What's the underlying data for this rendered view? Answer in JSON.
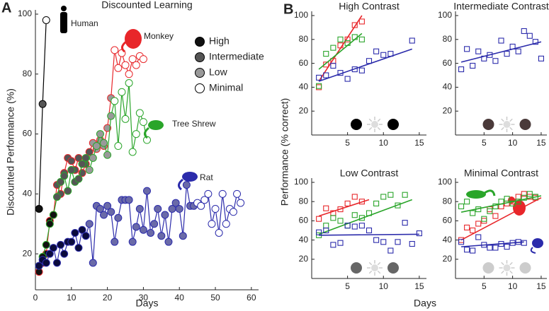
{
  "chart_data": [
    {
      "type": "line",
      "panel_label": "A",
      "title": "Discounted Learning",
      "x_label": "Days",
      "y_label": "Discounted Performance (%)",
      "xlim": [
        0,
        62
      ],
      "xticks": [
        0,
        10,
        20,
        30,
        40,
        50,
        60
      ],
      "ylim": [
        8,
        100
      ],
      "yticks": [
        20,
        40,
        60,
        80,
        100
      ],
      "legend": [
        {
          "name": "High",
          "color": "#111111"
        },
        {
          "name": "Intermediate",
          "color": "#555555"
        },
        {
          "name": "Low",
          "color": "#999999"
        },
        {
          "name": "Minimal",
          "color": "#ffffff"
        }
      ],
      "series": [
        {
          "name": "Human",
          "color": "#000000",
          "x": [
            1,
            2,
            3
          ],
          "values": [
            35,
            70,
            98
          ],
          "marker_colors": [
            "#111111",
            "#555555",
            "#ffffff"
          ]
        },
        {
          "name": "Monkey",
          "color": "#e8262a",
          "x": [
            1,
            2,
            3,
            4,
            5,
            6,
            7,
            8,
            9,
            10,
            11,
            12,
            13,
            14,
            15,
            16,
            17,
            18,
            19,
            20,
            21,
            22,
            23,
            24,
            25,
            26,
            27,
            28,
            29,
            30
          ],
          "values": [
            14,
            17,
            20,
            31,
            33,
            43,
            40,
            47,
            52,
            51,
            48,
            52,
            47,
            50,
            54,
            57,
            55,
            58,
            56,
            62,
            72,
            88,
            82,
            87,
            83,
            80,
            85,
            83,
            86,
            85
          ],
          "marker_colors": [
            "#111111",
            "#111111",
            "#111111",
            "#111111",
            "#111111",
            "#555555",
            "#555555",
            "#555555",
            "#555555",
            "#555555",
            "#555555",
            "#555555",
            "#555555",
            "#555555",
            "#555555",
            "#999999",
            "#999999",
            "#999999",
            "#999999",
            "#999999",
            "#999999",
            "#ffffff",
            "#ffffff",
            "#ffffff",
            "#ffffff",
            "#ffffff",
            "#ffffff",
            "#ffffff",
            "#ffffff",
            "#ffffff"
          ]
        },
        {
          "name": "Tree Shrew",
          "color": "#2aa52a",
          "x": [
            1,
            2,
            3,
            4,
            5,
            6,
            7,
            8,
            9,
            10,
            11,
            12,
            13,
            14,
            15,
            16,
            17,
            18,
            19,
            20,
            21,
            22,
            23,
            24,
            25,
            26,
            27,
            28,
            29,
            30,
            31
          ],
          "values": [
            16,
            19,
            23,
            30,
            33,
            39,
            44,
            46,
            41,
            48,
            44,
            45,
            50,
            52,
            48,
            52,
            56,
            60,
            57,
            53,
            66,
            71,
            56,
            74,
            65,
            77,
            54,
            60,
            67,
            64,
            58
          ],
          "marker_colors": [
            "#111111",
            "#111111",
            "#111111",
            "#111111",
            "#111111",
            "#555555",
            "#555555",
            "#555555",
            "#555555",
            "#555555",
            "#555555",
            "#555555",
            "#555555",
            "#555555",
            "#999999",
            "#999999",
            "#999999",
            "#999999",
            "#999999",
            "#999999",
            "#999999",
            "#ffffff",
            "#ffffff",
            "#ffffff",
            "#ffffff",
            "#ffffff",
            "#ffffff",
            "#ffffff",
            "#ffffff",
            "#ffffff",
            "#ffffff"
          ]
        },
        {
          "name": "Rat",
          "color": "#2b2bab",
          "x": [
            1,
            2,
            3,
            4,
            5,
            6,
            7,
            8,
            9,
            10,
            11,
            12,
            13,
            14,
            15,
            16,
            17,
            18,
            19,
            20,
            21,
            22,
            23,
            24,
            25,
            26,
            27,
            28,
            29,
            30,
            31,
            32,
            33,
            34,
            35,
            36,
            37,
            38,
            39,
            40,
            41,
            42,
            43,
            44,
            45,
            46,
            47,
            48,
            49,
            50,
            51,
            52,
            53,
            54,
            55,
            56,
            57
          ],
          "values": [
            16,
            18,
            17,
            20,
            22,
            17,
            23,
            20,
            24,
            24,
            27,
            22,
            28,
            26,
            30,
            17,
            36,
            35,
            33,
            36,
            34,
            24,
            32,
            38,
            38,
            38,
            24,
            29,
            35,
            28,
            41,
            27,
            30,
            35,
            26,
            33,
            24,
            35,
            37,
            35,
            26,
            43,
            36,
            36,
            37,
            36,
            38,
            40,
            30,
            35,
            27,
            40,
            30,
            35,
            34,
            40,
            37
          ],
          "marker_colors": [
            "#0b0b3b",
            "#0b0b3b",
            "#0b0b3b",
            "#0b0b3b",
            "#0b0b3b",
            "#0b0b3b",
            "#0b0b3b",
            "#0b0b3b",
            "#0b0b3b",
            "#0b0b3b",
            "#0b0b3b",
            "#0b0b3b",
            "#0b0b3b",
            "#0b0b3b",
            "#6a6aa8",
            "#6a6aa8",
            "#6a6aa8",
            "#6a6aa8",
            "#6a6aa8",
            "#6a6aa8",
            "#6a6aa8",
            "#6a6aa8",
            "#6a6aa8",
            "#6a6aa8",
            "#6a6aa8",
            "#6a6aa8",
            "#6a6aa8",
            "#6a6aa8",
            "#6a6aa8",
            "#6a6aa8",
            "#6a6aa8",
            "#6a6aa8",
            "#6a6aa8",
            "#6a6aa8",
            "#6a6aa8",
            "#6a6aa8",
            "#6a6aa8",
            "#6a6aa8",
            "#6a6aa8",
            "#6a6aa8",
            "#6a6aa8",
            "#6a6aa8",
            "#6a6aa8",
            "#6a6aa8",
            "#ffffff",
            "#ffffff",
            "#ffffff",
            "#ffffff",
            "#ffffff",
            "#ffffff",
            "#ffffff",
            "#ffffff",
            "#ffffff",
            "#ffffff",
            "#ffffff",
            "#ffffff",
            "#ffffff"
          ]
        }
      ]
    },
    {
      "type": "scatter",
      "panel_label": "B",
      "title": "High Contrast",
      "stimulus_color": "#000000",
      "xlim": [
        0,
        16
      ],
      "xticks": [
        5,
        10,
        15
      ],
      "ylim": [
        0,
        100
      ],
      "yticks": [
        20,
        40,
        60,
        80,
        100
      ],
      "series": [
        {
          "color": "#e8262a",
          "x": [
            1,
            2,
            3,
            4,
            5,
            6,
            7
          ],
          "values": [
            40,
            59,
            62,
            75,
            80,
            92,
            95
          ],
          "fit_x": [
            1,
            7
          ],
          "fit_values": [
            45,
            100
          ]
        },
        {
          "color": "#2aa52a",
          "x": [
            1,
            2,
            3,
            4,
            5,
            6,
            7
          ],
          "values": [
            41,
            68,
            73,
            80,
            77,
            82,
            80
          ],
          "fit_x": [
            1,
            7
          ],
          "fit_values": [
            55,
            85
          ]
        },
        {
          "color": "#2b2bab",
          "x": [
            1,
            2,
            3,
            4,
            5,
            6,
            7,
            8,
            9,
            10,
            11,
            14
          ],
          "values": [
            48,
            50,
            58,
            52,
            47,
            55,
            54,
            62,
            70,
            67,
            68,
            79
          ],
          "fit_x": [
            1,
            14
          ],
          "fit_values": [
            45,
            72
          ]
        }
      ]
    },
    {
      "type": "scatter",
      "title": "Intermediate Contrast",
      "stimulus_color": "#4a3a3a",
      "xlim": [
        0,
        16
      ],
      "xticks": [
        5,
        10,
        15
      ],
      "ylim": [
        0,
        100
      ],
      "yticks": [
        20,
        40,
        60,
        80,
        100
      ],
      "series": [
        {
          "color": "#2b2bab",
          "x": [
            1,
            2,
            3,
            4,
            5,
            6,
            7,
            8,
            9,
            10,
            11,
            12,
            13,
            14,
            15
          ],
          "values": [
            55,
            72,
            58,
            70,
            64,
            67,
            62,
            79,
            68,
            74,
            70,
            87,
            83,
            78,
            64
          ],
          "fit_x": [
            1,
            15
          ],
          "fit_values": [
            61,
            78
          ]
        }
      ]
    },
    {
      "type": "scatter",
      "title": "Low Contrast",
      "stimulus_color": "#666666",
      "xlim": [
        0,
        16
      ],
      "xticks": [
        5,
        10,
        15
      ],
      "ylim": [
        0,
        100
      ],
      "yticks": [
        20,
        40,
        60,
        80,
        100
      ],
      "series": [
        {
          "color": "#e8262a",
          "x": [
            1,
            2,
            3,
            4,
            5,
            6,
            7
          ],
          "values": [
            62,
            73,
            68,
            72,
            78,
            85,
            80
          ],
          "fit_x": [
            1,
            8
          ],
          "fit_values": [
            65,
            82
          ]
        },
        {
          "color": "#2aa52a",
          "x": [
            1,
            2,
            3,
            4,
            5,
            6,
            7,
            8,
            9,
            10,
            11,
            12,
            13
          ],
          "values": [
            45,
            55,
            63,
            60,
            55,
            66,
            63,
            68,
            78,
            85,
            87,
            76,
            87
          ],
          "fit_x": [
            1,
            14
          ],
          "fit_values": [
            46,
            82
          ]
        },
        {
          "color": "#2b2bab",
          "x": [
            1,
            2,
            3,
            4,
            5,
            6,
            7,
            8,
            9,
            10,
            11,
            12,
            13,
            14,
            15
          ],
          "values": [
            48,
            50,
            35,
            37,
            55,
            54,
            55,
            50,
            40,
            38,
            29,
            38,
            58,
            36,
            47
          ],
          "fit_x": [
            1,
            15
          ],
          "fit_values": [
            45,
            46
          ]
        }
      ]
    },
    {
      "type": "scatter",
      "title": "Minimal Contrast",
      "stimulus_color": "#cccccc",
      "xlim": [
        0,
        16
      ],
      "xticks": [
        5,
        10,
        15
      ],
      "ylim": [
        0,
        100
      ],
      "yticks": [
        20,
        40,
        60,
        80,
        100
      ],
      "series": [
        {
          "color": "#e8262a",
          "x": [
            1,
            2,
            3,
            4,
            5,
            6,
            7,
            8,
            9,
            10,
            11,
            12,
            13,
            14
          ],
          "values": [
            40,
            53,
            50,
            57,
            60,
            72,
            65,
            75,
            78,
            80,
            85,
            88,
            85,
            84
          ],
          "fit_x": [
            1,
            15
          ],
          "fit_values": [
            40,
            84
          ]
        },
        {
          "color": "#2aa52a",
          "x": [
            1,
            2,
            3,
            4,
            5,
            6,
            7,
            8,
            9,
            10,
            11,
            12,
            13,
            14
          ],
          "values": [
            75,
            80,
            68,
            72,
            62,
            70,
            75,
            80,
            83,
            78,
            80,
            84,
            88,
            85
          ],
          "fit_x": [
            1,
            15
          ],
          "fit_values": [
            69,
            86
          ]
        },
        {
          "color": "#2b2bab",
          "x": [
            1,
            2,
            3,
            4,
            5,
            6,
            7,
            8,
            9,
            10,
            11,
            12
          ],
          "values": [
            38,
            30,
            29,
            43,
            35,
            32,
            32,
            36,
            33,
            37,
            38,
            37
          ],
          "fit_x": [
            1,
            12
          ],
          "fit_values": [
            33,
            38
          ]
        }
      ]
    }
  ],
  "panel_b": {
    "x_label": "Days",
    "y_label": "Performance (% correct)"
  }
}
